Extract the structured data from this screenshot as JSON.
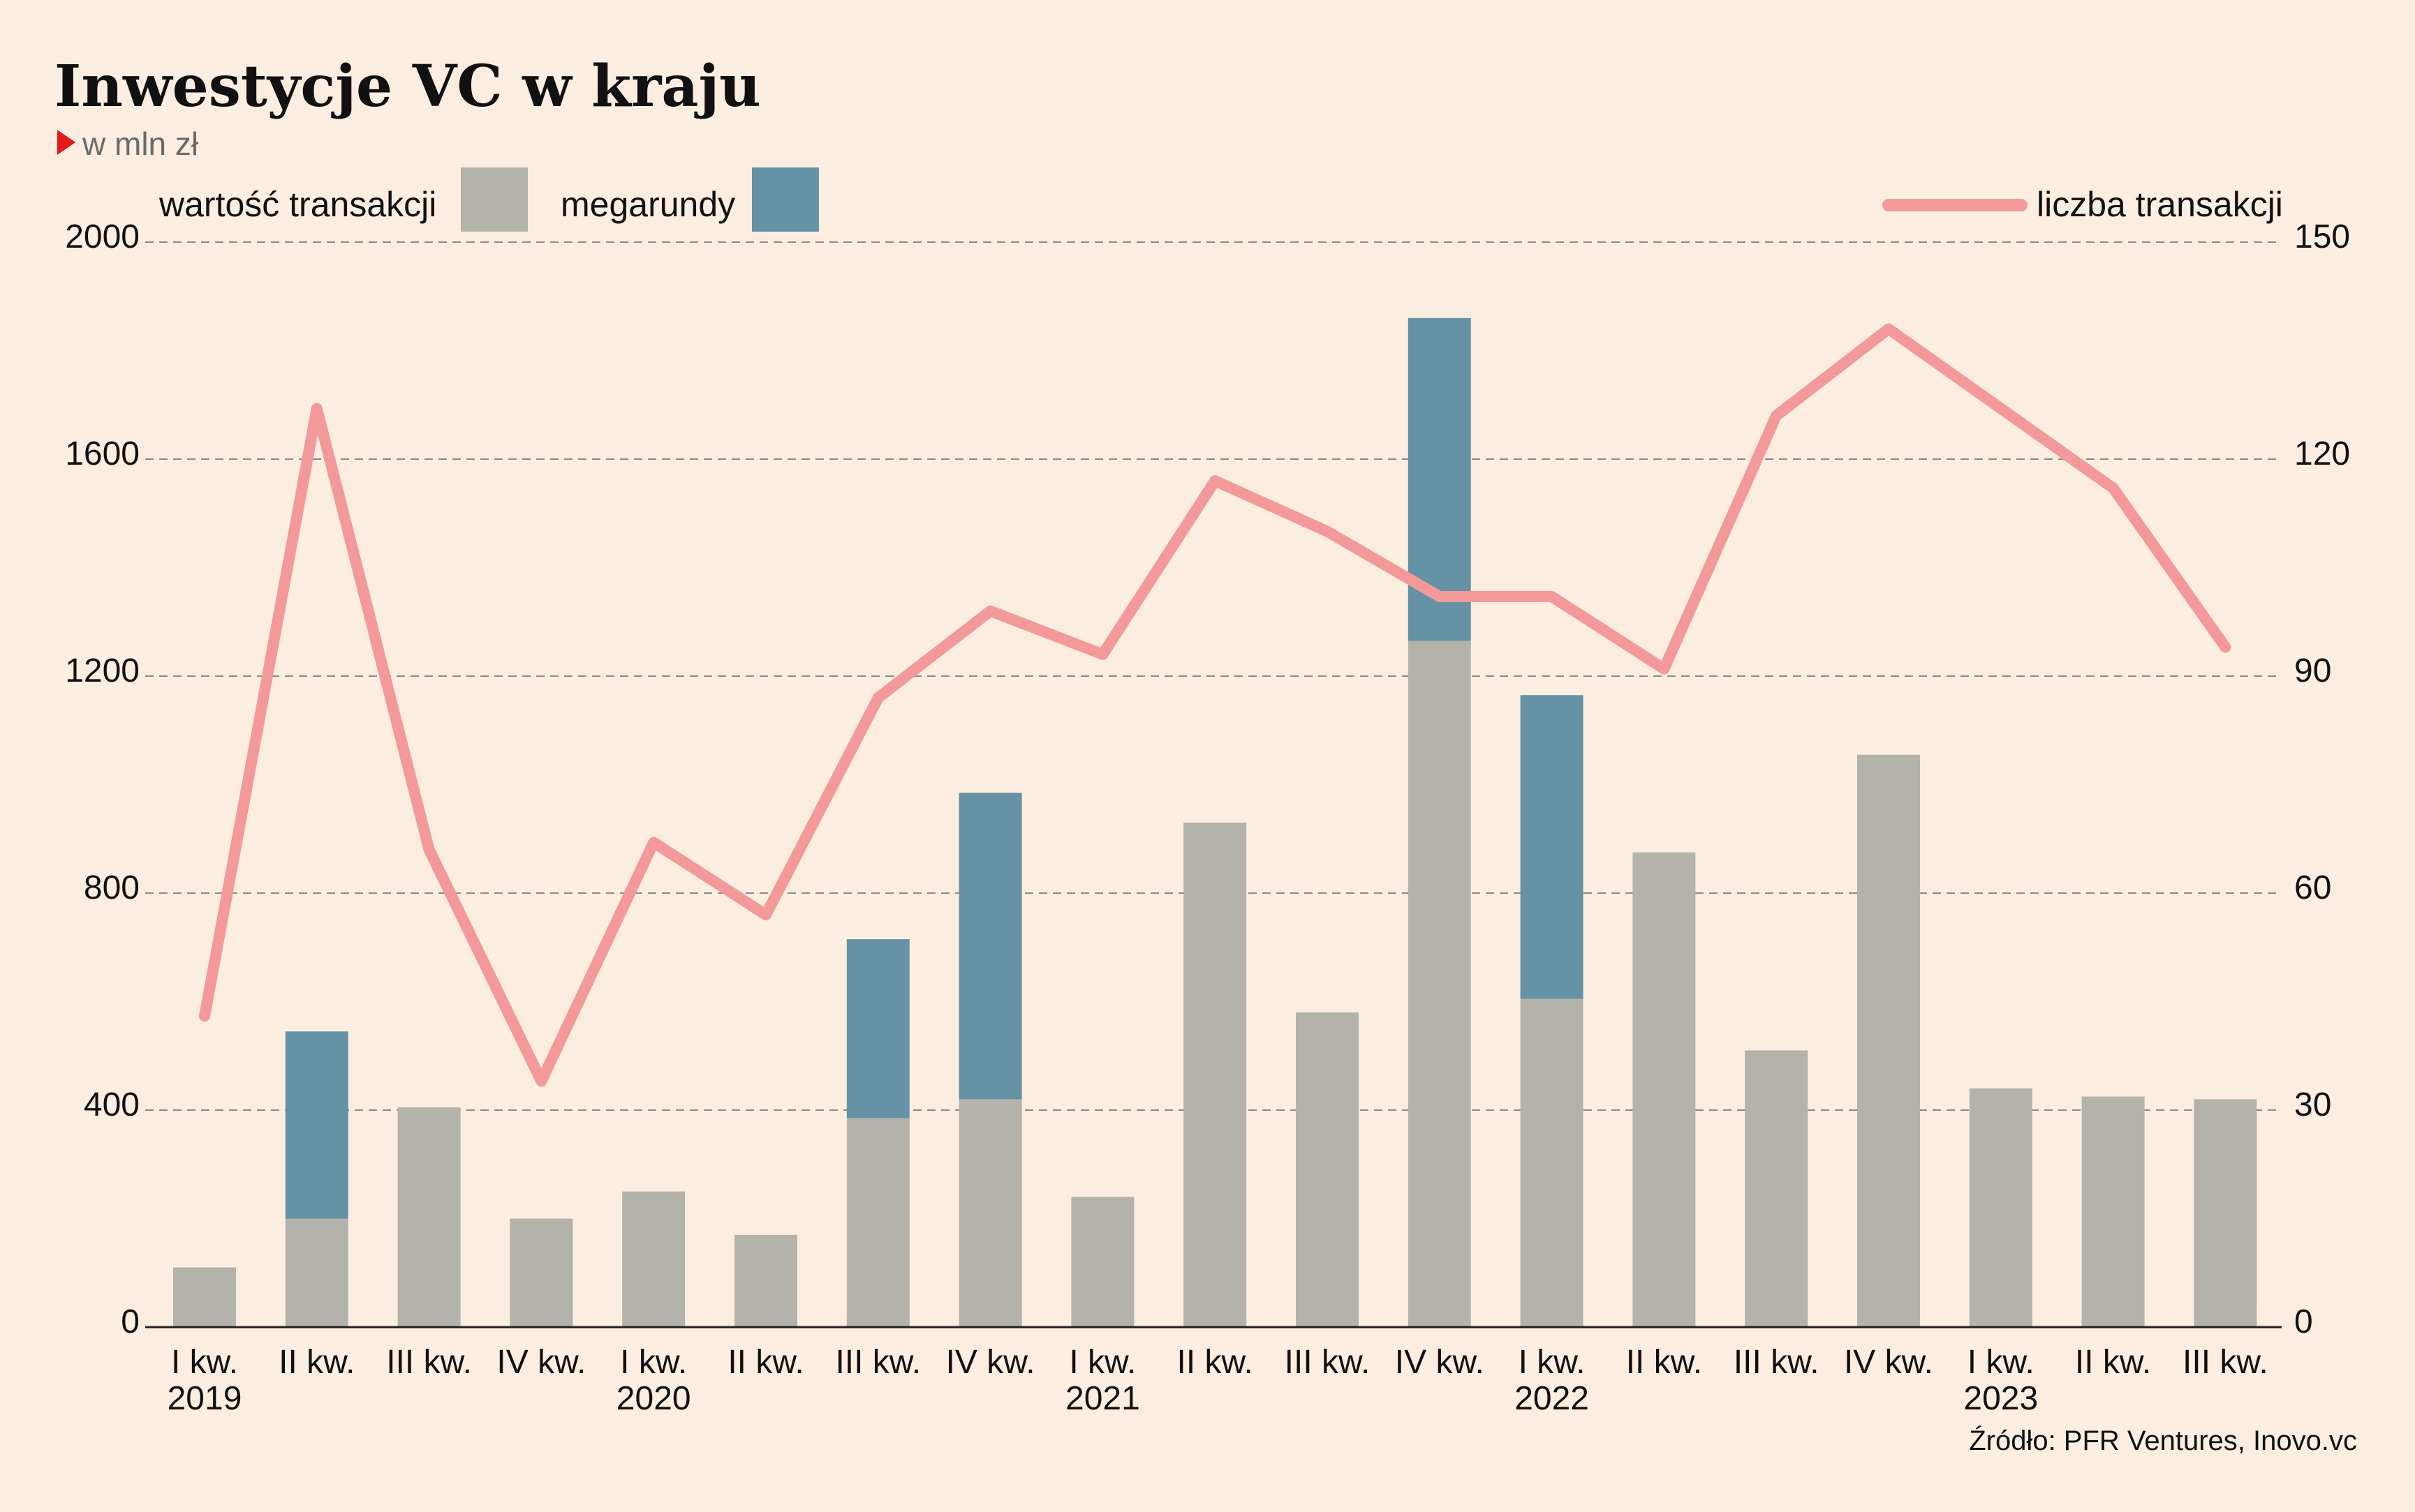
{
  "chart_data": {
    "type": "bar",
    "title": "Inwestycje VC w kraju",
    "subtitle": "w mln zł",
    "source": "Źródło: PFR Ventures, Inovo.vc",
    "categories": [
      {
        "quarter": "I kw.",
        "year": "2019"
      },
      {
        "quarter": "II kw.",
        "year": ""
      },
      {
        "quarter": "III kw.",
        "year": ""
      },
      {
        "quarter": "IV kw.",
        "year": ""
      },
      {
        "quarter": "I kw.",
        "year": "2020"
      },
      {
        "quarter": "II kw.",
        "year": ""
      },
      {
        "quarter": "III kw.",
        "year": ""
      },
      {
        "quarter": "IV kw.",
        "year": ""
      },
      {
        "quarter": "I kw.",
        "year": "2021"
      },
      {
        "quarter": "II kw.",
        "year": ""
      },
      {
        "quarter": "III kw.",
        "year": ""
      },
      {
        "quarter": "IV kw.",
        "year": ""
      },
      {
        "quarter": "I kw.",
        "year": "2022"
      },
      {
        "quarter": "II kw.",
        "year": ""
      },
      {
        "quarter": "III kw.",
        "year": ""
      },
      {
        "quarter": "IV kw.",
        "year": ""
      },
      {
        "quarter": "I kw.",
        "year": "2023"
      },
      {
        "quarter": "II kw.",
        "year": ""
      },
      {
        "quarter": "III kw.",
        "year": ""
      }
    ],
    "series": [
      {
        "name": "wartość transakcji",
        "kind": "bar-stacked",
        "axis": "left",
        "color": "#b4b3ab",
        "values": [
          110,
          200,
          405,
          200,
          250,
          170,
          385,
          420,
          240,
          930,
          580,
          1265,
          605,
          875,
          510,
          1055,
          440,
          425,
          420
        ]
      },
      {
        "name": "megarundy",
        "kind": "bar-stacked",
        "axis": "left",
        "color": "#6592a4",
        "values": [
          0,
          345,
          0,
          0,
          0,
          0,
          330,
          565,
          0,
          0,
          0,
          595,
          560,
          0,
          0,
          0,
          0,
          0,
          0
        ]
      },
      {
        "name": "liczba transakcji",
        "kind": "line",
        "axis": "right",
        "color": "#f4999a",
        "values": [
          43,
          127,
          66,
          34,
          67,
          57,
          87,
          99,
          93,
          117,
          110,
          101,
          101,
          91,
          126,
          138,
          127,
          116,
          94
        ]
      }
    ],
    "y_left": {
      "min": 0,
      "max": 2000,
      "ticks": [
        0,
        400,
        800,
        1200,
        1600,
        2000
      ]
    },
    "y_right": {
      "min": 0,
      "max": 150,
      "ticks": [
        0,
        30,
        60,
        90,
        120,
        150
      ]
    },
    "grid": true,
    "legend_placement": "top"
  }
}
